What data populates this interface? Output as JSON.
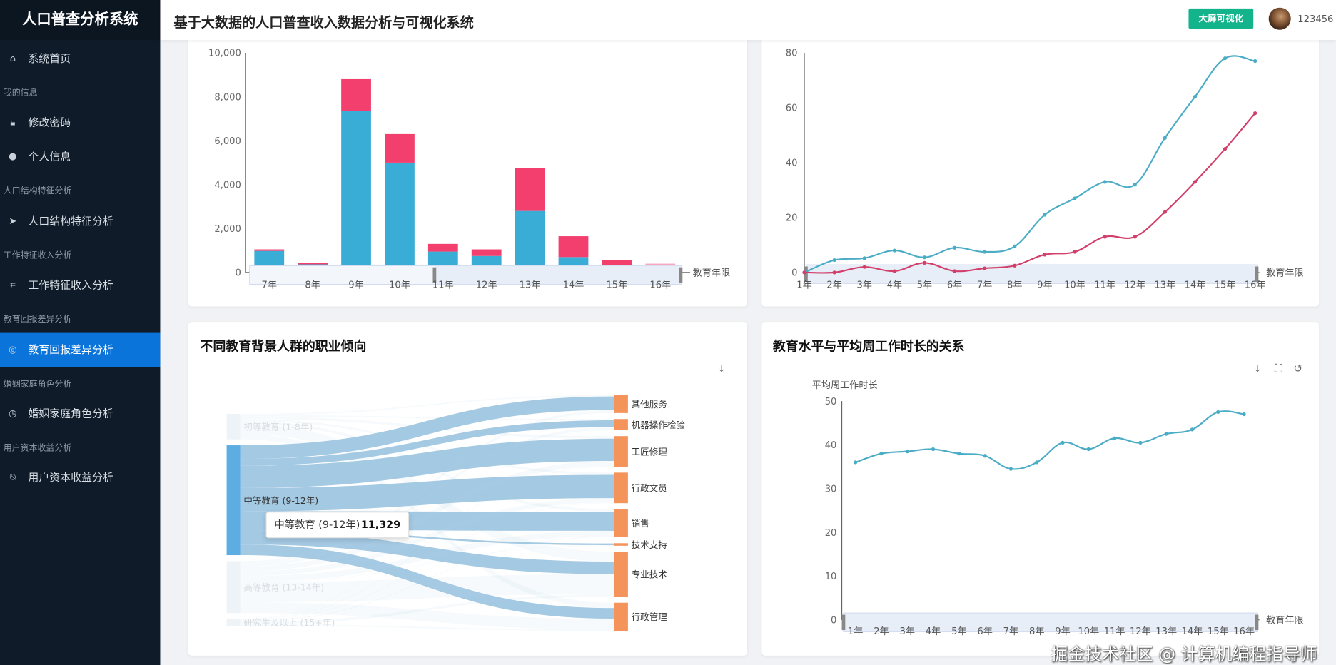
{
  "sidebar": {
    "logo": "人口普查分析系统",
    "entries": [
      {
        "type": "item",
        "label": "系统首页",
        "icon": "home-icon",
        "glyph": "⌂"
      },
      {
        "type": "group",
        "label": "我的信息"
      },
      {
        "type": "item",
        "label": "修改密码",
        "icon": "lock-icon",
        "glyph": "🔒︎"
      },
      {
        "type": "item",
        "label": "个人信息",
        "icon": "user-icon",
        "glyph": "●"
      },
      {
        "type": "group",
        "label": "人口结构特征分析"
      },
      {
        "type": "item",
        "label": "人口结构特征分析",
        "icon": "navigation-icon",
        "glyph": "➤"
      },
      {
        "type": "group",
        "label": "工作特征收入分析"
      },
      {
        "type": "item",
        "label": "工作特征收入分析",
        "icon": "crop-icon",
        "glyph": "⌗"
      },
      {
        "type": "group",
        "label": "教育回报差异分析"
      },
      {
        "type": "item",
        "label": "教育回报差异分析",
        "icon": "globe-icon",
        "glyph": "◎",
        "active": true
      },
      {
        "type": "group",
        "label": "婚姻家庭角色分析"
      },
      {
        "type": "item",
        "label": "婚姻家庭角色分析",
        "icon": "clock-icon",
        "glyph": "◷"
      },
      {
        "type": "group",
        "label": "用户资本收益分析"
      },
      {
        "type": "item",
        "label": "用户资本收益分析",
        "icon": "bell-off-icon",
        "glyph": "⍉"
      }
    ]
  },
  "header": {
    "title": "基于大数据的人口普查收入数据分析与可视化系统",
    "big_screen_button": "大屏可视化",
    "username": "123456"
  },
  "colors": {
    "accent": "#0a74da",
    "blue_series": "#3aadd6",
    "pink_series": "#f23f6e",
    "line_blue": "#4bacc6",
    "line_pink": "#d13f6a",
    "sankey_target": "#f4935a",
    "sankey_source": "#5dade2",
    "button_green": "#13b38b"
  },
  "chart_data": [
    {
      "type": "bar",
      "stacked": true,
      "x_axis_name": "教育年限",
      "categories": [
        "7年",
        "8年",
        "9年",
        "10年",
        "11年",
        "12年",
        "13年",
        "14年",
        "15年",
        "16年"
      ],
      "series": [
        {
          "values": [
            980,
            370,
            7350,
            5000,
            950,
            750,
            2800,
            700,
            300,
            250
          ]
        },
        {
          "values": [
            70,
            50,
            1450,
            1300,
            350,
            300,
            1950,
            950,
            250,
            150
          ]
        }
      ],
      "yticks": [
        "0",
        "2,000",
        "4,000",
        "6,000",
        "8,000",
        "10,000"
      ],
      "ylim": [
        0,
        10000
      ],
      "datazoom": true
    },
    {
      "type": "line",
      "smooth": true,
      "x_axis_name": "教育年限",
      "categories": [
        "1年",
        "2年",
        "3年",
        "4年",
        "5年",
        "6年",
        "7年",
        "8年",
        "9年",
        "10年",
        "11年",
        "12年",
        "13年",
        "14年",
        "15年",
        "16年"
      ],
      "series": [
        {
          "values": [
            0,
            4.5,
            5.2,
            8,
            5.5,
            9,
            7.5,
            9.5,
            21,
            27,
            33,
            32,
            49,
            64,
            78,
            77
          ]
        },
        {
          "values": [
            0,
            0,
            2,
            0.5,
            3.5,
            0.5,
            1.5,
            2.5,
            6.5,
            7.5,
            13,
            13,
            22,
            33,
            45,
            58
          ]
        }
      ],
      "yticks": [
        "0",
        "20",
        "40",
        "60",
        "80"
      ],
      "ylim": [
        0,
        80
      ],
      "datazoom": true
    },
    {
      "type": "sankey",
      "title": "不同教育背景人群的职业倾向",
      "sources": [
        {
          "name": "初等教育 (1-8年)",
          "value": 2630
        },
        {
          "name": "中等教育 (9-12年)",
          "value": 11329
        },
        {
          "name": "高等教育 (13-14年)",
          "value": 5360
        },
        {
          "name": "研究生及以上 (15+年)",
          "value": 690
        }
      ],
      "targets": [
        {
          "name": "其他服务",
          "value": 1850
        },
        {
          "name": "机器操作检验",
          "value": 1150
        },
        {
          "name": "工匠修理",
          "value": 3150
        },
        {
          "name": "行政文员",
          "value": 3150
        },
        {
          "name": "销售",
          "value": 2900
        },
        {
          "name": "技术支持",
          "value": 260
        },
        {
          "name": "专业技术",
          "value": 4650
        },
        {
          "name": "行政管理",
          "value": 2900
        }
      ],
      "highlighted_source": "中等教育 (9-12年)",
      "highlighted_links": [
        1400,
        700,
        2300,
        2400,
        1950,
        180,
        1300,
        1099
      ],
      "tooltip": {
        "name": "中等教育 (9-12年)",
        "value": "11,329"
      }
    },
    {
      "type": "line",
      "smooth": true,
      "title": "教育水平与平均周工作时长的关系",
      "y_axis_name": "平均周工作时长",
      "x_axis_name": "教育年限",
      "categories": [
        "1年",
        "2年",
        "3年",
        "4年",
        "5年",
        "6年",
        "7年",
        "8年",
        "9年",
        "10年",
        "11年",
        "12年",
        "13年",
        "14年",
        "15年",
        "16年"
      ],
      "series": [
        {
          "values": [
            36,
            38,
            38.5,
            39,
            38,
            37.5,
            34.5,
            36,
            40.5,
            39,
            41.5,
            40.5,
            42.5,
            43.5,
            47.5,
            47
          ]
        }
      ],
      "yticks": [
        "0",
        "10",
        "20",
        "30",
        "40",
        "50"
      ],
      "ylim": [
        0,
        50
      ],
      "datazoom": true,
      "toolbox": [
        "download-icon",
        "zoom-icon",
        "restore-icon"
      ]
    }
  ],
  "watermark": "掘金技术社区 @ 计算机编程指导师"
}
